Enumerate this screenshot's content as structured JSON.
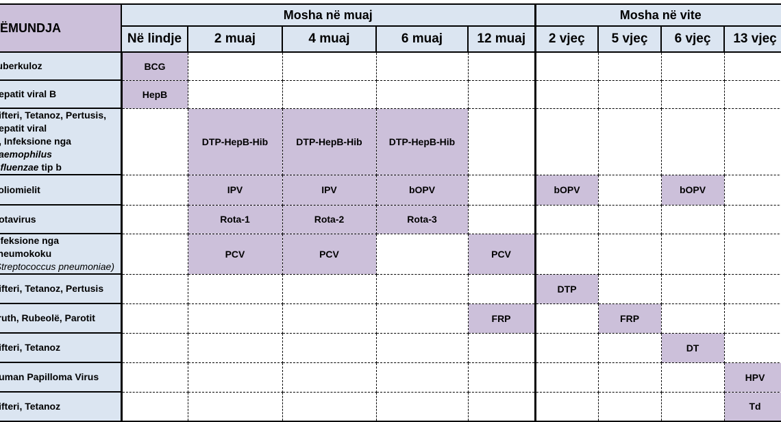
{
  "header": {
    "corner_label": "SËMUNDJA",
    "months_band": "Mosha në muaj",
    "years_band": "Mosha në vite",
    "ages": [
      "Në lindje",
      "2 muaj",
      "4 muaj",
      "6 muaj",
      "12 muaj",
      "2 vjeç",
      "5 vjeç",
      "6 vjeç",
      "13 vjeç"
    ]
  },
  "rows": [
    {
      "disease": "Tuberkuloz"
    },
    {
      "disease": "Hepatit viral B"
    },
    {
      "disease_line1": "Difteri, Tetanoz, Pertusis, Hepatit viral",
      "disease_line2_pre": "B, Infeksione nga ",
      "disease_line2_em": "Haemophilus",
      "disease_line3_em": "influenzae",
      "disease_line3_post": " tip b"
    },
    {
      "disease": "Poliomielit"
    },
    {
      "disease": "Rotavirus"
    },
    {
      "disease_line1": "Infeksione nga pneumokoku",
      "disease_line2_em": "(Streptococcus pneumoniae)"
    },
    {
      "disease": "Difteri, Tetanoz, Pertusis"
    },
    {
      "disease": "Fruth, Rubeolë, Parotit"
    },
    {
      "disease": "Difteri, Tetanoz"
    },
    {
      "disease": "Human Papilloma Virus"
    },
    {
      "disease": "Difteri, Tetanoz"
    }
  ],
  "vaccines": {
    "bcg": "BCG",
    "hepb": "HepB",
    "dtp_hepb_hib": "DTP-HepB-Hib",
    "ipv": "IPV",
    "bopv": "bOPV",
    "rota1": "Rota-1",
    "rota2": "Rota-2",
    "rota3": "Rota-3",
    "pcv": "PCV",
    "dtp": "DTP",
    "frp": "FRP",
    "dt": "DT",
    "hpv": "HPV",
    "td": "Td"
  },
  "colors": {
    "header_blue": "#dbe5f1",
    "vaccine_lilac": "#ccc0da"
  }
}
